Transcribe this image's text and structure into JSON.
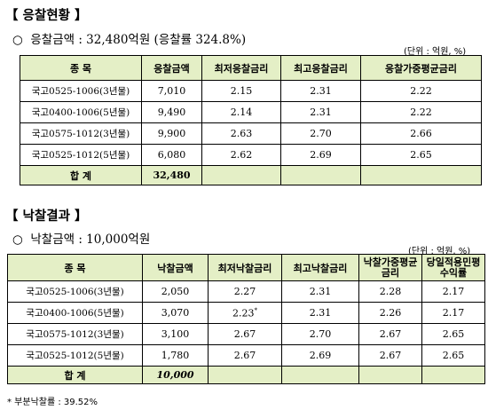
{
  "section1": {
    "title": "【 응찰현황 】",
    "bullet": "○",
    "amount_label": "응찰금액 : 32,480억원 (응찰률 324.8%)",
    "unit": "(단위 : 억원, %)",
    "headers": [
      "종 목",
      "응찰금액",
      "최저응찰금리",
      "최고응찰금리",
      "응찰가중평균금리"
    ],
    "rows": [
      [
        "국고0525-1006(3년물)",
        "7,010",
        "2.15",
        "2.31",
        "2.22"
      ],
      [
        "국고0400-1006(5년물)",
        "9,490",
        "2.14",
        "2.31",
        "2.22"
      ],
      [
        "국고0575-1012(3년물)",
        "9,900",
        "2.63",
        "2.70",
        "2.66"
      ],
      [
        "국고0525-1012(5년물)",
        "6,080",
        "2.62",
        "2.69",
        "2.65"
      ]
    ],
    "total_label": "합 계",
    "total_value": "32,480"
  },
  "section2": {
    "title": "【 낙찰결과 】",
    "bullet": "○",
    "amount_label": "낙찰금액 : 10,000억원",
    "unit": "(단위 : 억원, %)",
    "headers": [
      "종 목",
      "낙찰금액",
      "최저낙찰금리",
      "최고낙찰금리",
      "낙찰가중평균금리",
      "당일적용민평수익률"
    ],
    "rows": [
      [
        "국고0525-1006(3년물)",
        "2,050",
        "2.27",
        "2.31",
        "2.28",
        "2.17"
      ],
      [
        "국고0400-1006(5년물)",
        "3,070",
        "2.23",
        "2.31",
        "2.26",
        "2.17"
      ],
      [
        "국고0575-1012(3년물)",
        "3,100",
        "2.67",
        "2.70",
        "2.67",
        "2.65"
      ],
      [
        "국고0525-1012(5년물)",
        "1,780",
        "2.67",
        "2.69",
        "2.67",
        "2.65"
      ]
    ],
    "footnote_mark": "*",
    "total_label": "합 계",
    "total_value": "10,000",
    "note": "* 부분낙찰률 : 39.52%"
  }
}
